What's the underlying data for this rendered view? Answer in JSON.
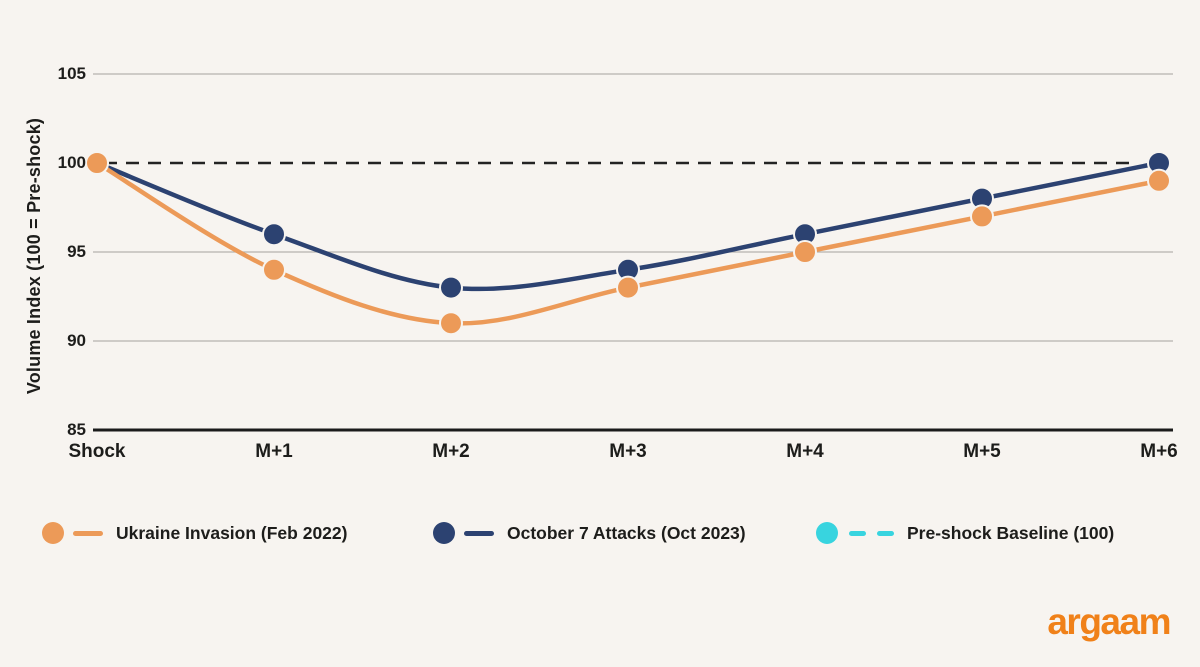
{
  "page": {
    "background": "#F7F4F0"
  },
  "chart_data": {
    "type": "line",
    "title": "",
    "xlabel": "",
    "ylabel": "Volume Index (100 = Pre-shock)",
    "categories": [
      "Shock",
      "M+1",
      "M+2",
      "M+3",
      "M+4",
      "M+5",
      "M+6"
    ],
    "yticks": [
      85,
      90,
      95,
      100,
      105
    ],
    "ylim": [
      85,
      105
    ],
    "grid": "horizontal",
    "legend_position": "bottom",
    "series": [
      {
        "name": "Ukraine Invasion (Feb 2022)",
        "color": "#EC9A58",
        "values": [
          100,
          94,
          91,
          93,
          95,
          97,
          99
        ],
        "marker": "circle"
      },
      {
        "name": "October 7 Attacks (Oct 2023)",
        "color": "#2C4271",
        "values": [
          100,
          96,
          93,
          94,
          96,
          98,
          100
        ],
        "marker": "circle"
      }
    ],
    "baseline": {
      "value": 100,
      "label": "Pre-shock Baseline (100)",
      "line_style": "dashed",
      "line_color": "#232323"
    },
    "colors": {
      "grid_line": "#B5B2AE",
      "axis_line": "#1B1B1B",
      "tick_text": "#1D1D1B"
    }
  },
  "legend": {
    "items": [
      {
        "label": "Ukraine Invasion (Feb 2022)",
        "color": "#EC9A58",
        "marker": "dot-solid-line"
      },
      {
        "label": "October 7 Attacks (Oct 2023)",
        "color": "#2C4271",
        "marker": "dot-solid-line"
      },
      {
        "label": "Pre-shock Baseline (100)",
        "color": "#38D4DF",
        "marker": "dot-dashed-line"
      }
    ]
  },
  "branding": {
    "logo_text": "argaam",
    "logo_color": "#F08119"
  }
}
